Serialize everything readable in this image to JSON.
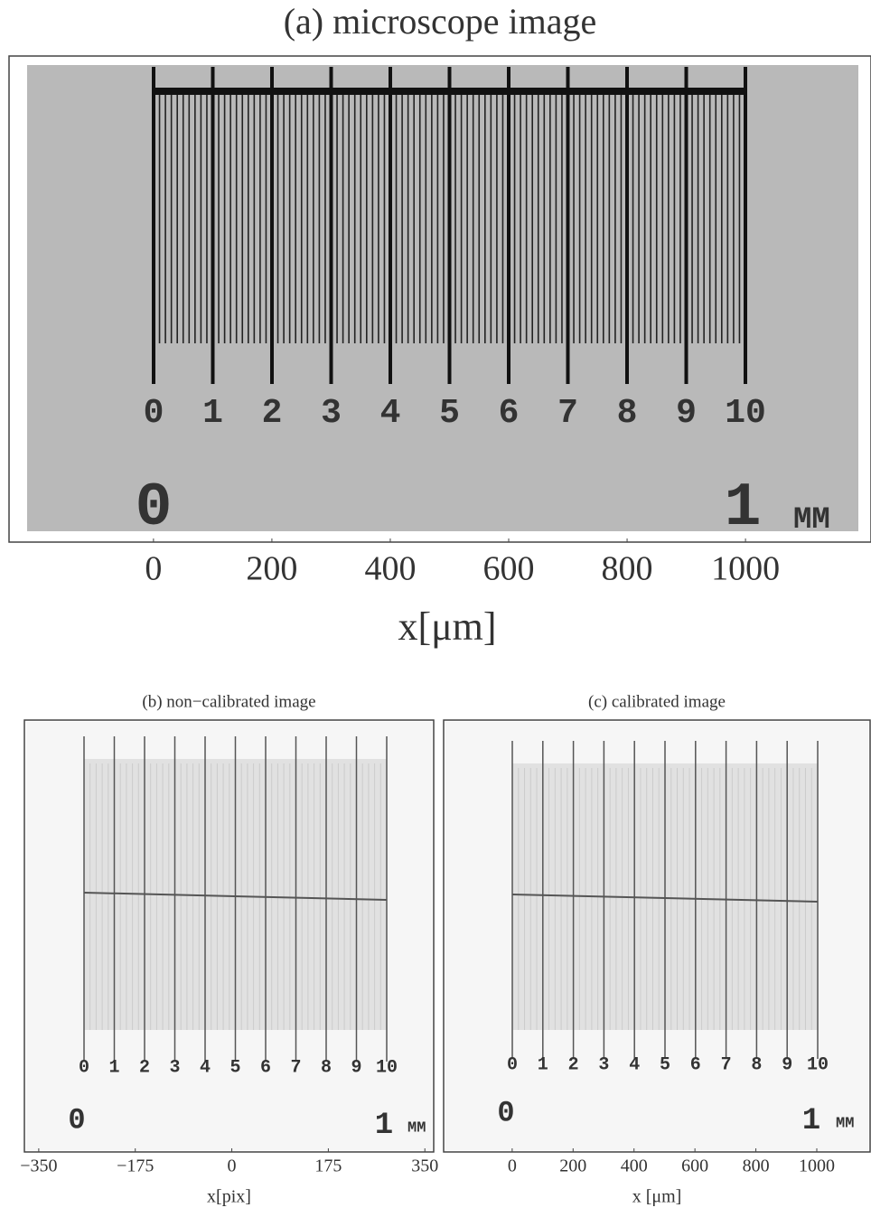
{
  "chart_data": [
    {
      "type": "image",
      "title": "(a) microscope image",
      "xlabel": "x[μm]",
      "xlim": [
        -244,
        1212
      ],
      "xticks": [
        0,
        200,
        400,
        600,
        800,
        1000
      ],
      "ruler_labels": [
        "0",
        "1",
        "2",
        "3",
        "4",
        "5",
        "6",
        "7",
        "8",
        "9",
        "10"
      ],
      "corner_labels": [
        "0",
        "1",
        "MM"
      ]
    },
    {
      "type": "image",
      "title": "(b) non−calibrated image",
      "xlabel": "x[pix]",
      "xlim": [
        -376,
        366
      ],
      "xticks": [
        {
          "value": -350,
          "label": "−350"
        },
        {
          "value": -175,
          "label": "−175"
        },
        0,
        175,
        350
      ],
      "ruler_labels": [
        "0",
        "1",
        "2",
        "3",
        "4",
        "5",
        "6",
        "7",
        "8",
        "9",
        "10"
      ],
      "corner_labels": [
        "0",
        "1",
        "MM"
      ]
    },
    {
      "type": "image",
      "title": "(c) calibrated image",
      "xlabel": "x [μm]",
      "xlim": [
        -225,
        1175
      ],
      "xticks": [
        0,
        200,
        400,
        600,
        800,
        1000
      ],
      "ruler_labels": [
        "0",
        "1",
        "2",
        "3",
        "4",
        "5",
        "6",
        "7",
        "8",
        "9",
        "10"
      ],
      "corner_labels": [
        "0",
        "1",
        "MM"
      ]
    }
  ]
}
